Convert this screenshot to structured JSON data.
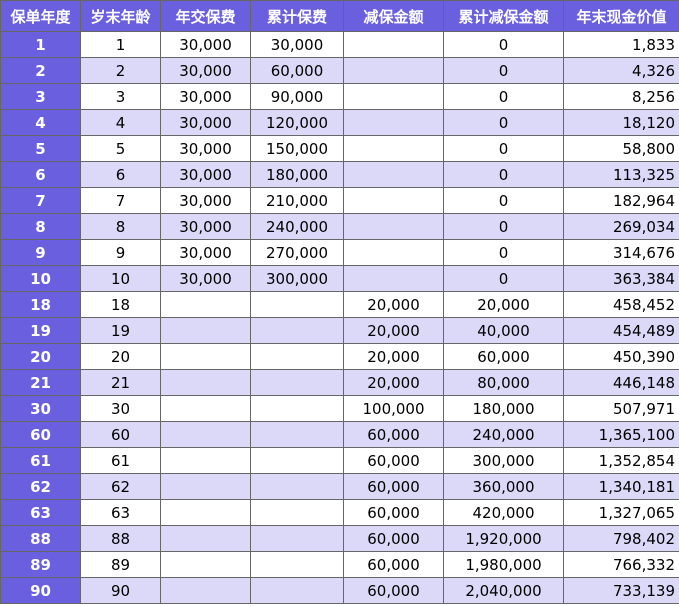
{
  "table": {
    "header": [
      "保单年度",
      "岁末年龄",
      "年交保费",
      "累计保费",
      "减保金额",
      "累计减保金额",
      "年末现金价值"
    ],
    "rows": [
      [
        "1",
        "1",
        "30,000",
        "30,000",
        null,
        "0",
        "1,833"
      ],
      [
        "2",
        "2",
        "30,000",
        "60,000",
        null,
        "0",
        "4,326"
      ],
      [
        "3",
        "3",
        "30,000",
        "90,000",
        null,
        "0",
        "8,256"
      ],
      [
        "4",
        "4",
        "30,000",
        "120,000",
        null,
        "0",
        "18,120"
      ],
      [
        "5",
        "5",
        "30,000",
        "150,000",
        null,
        "0",
        "58,800"
      ],
      [
        "6",
        "6",
        "30,000",
        "180,000",
        null,
        "0",
        "113,325"
      ],
      [
        "7",
        "7",
        "30,000",
        "210,000",
        null,
        "0",
        "182,964"
      ],
      [
        "8",
        "8",
        "30,000",
        "240,000",
        null,
        "0",
        "269,034"
      ],
      [
        "9",
        "9",
        "30,000",
        "270,000",
        null,
        "0",
        "314,676"
      ],
      [
        "10",
        "10",
        "30,000",
        "300,000",
        null,
        "0",
        "363,384"
      ],
      [
        "18",
        "18",
        null,
        null,
        "20,000",
        "20,000",
        "458,452"
      ],
      [
        "19",
        "19",
        null,
        null,
        "20,000",
        "40,000",
        "454,489"
      ],
      [
        "20",
        "20",
        null,
        null,
        "20,000",
        "60,000",
        "450,390"
      ],
      [
        "21",
        "21",
        null,
        null,
        "20,000",
        "80,000",
        "446,148"
      ],
      [
        "30",
        "30",
        null,
        null,
        "100,000",
        "180,000",
        "507,971"
      ],
      [
        "60",
        "60",
        null,
        null,
        "60,000",
        "240,000",
        "1,365,100"
      ],
      [
        "61",
        "61",
        null,
        null,
        "60,000",
        "300,000",
        "1,352,854"
      ],
      [
        "62",
        "62",
        null,
        null,
        "60,000",
        "360,000",
        "1,340,181"
      ],
      [
        "63",
        "63",
        null,
        null,
        "60,000",
        "420,000",
        "1,327,065"
      ],
      [
        "88",
        "88",
        null,
        null,
        "60,000",
        "1,920,000",
        "798,402"
      ],
      [
        "89",
        "89",
        null,
        null,
        "60,000",
        "1,980,000",
        "766,332"
      ],
      [
        "90",
        "90",
        null,
        null,
        "60,000",
        "2,040,000",
        "733,139"
      ]
    ]
  }
}
